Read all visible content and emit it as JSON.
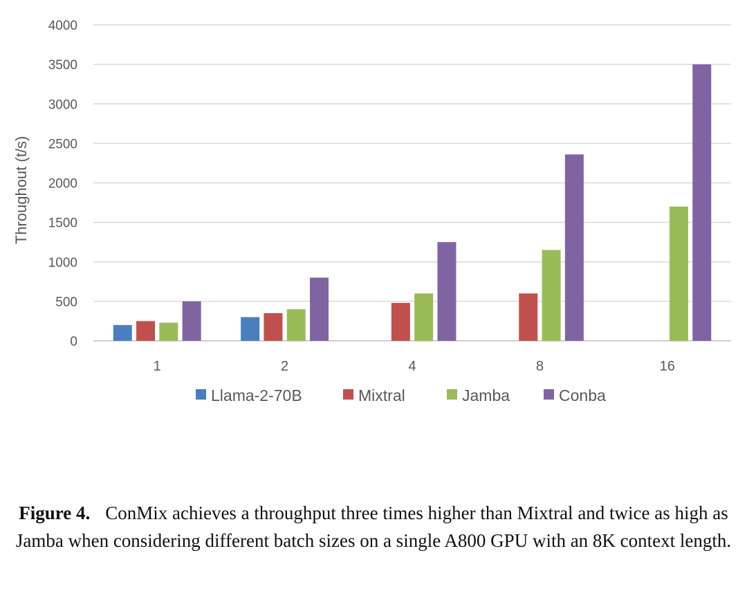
{
  "chart_data": {
    "type": "bar",
    "title": "",
    "xlabel": "",
    "ylabel": "Throughout (t/s)",
    "ylim": [
      0,
      4000
    ],
    "yticks": [
      "0",
      "500",
      "1000",
      "1500",
      "2000",
      "2500",
      "3000",
      "3500",
      "4000"
    ],
    "categories": [
      "1",
      "2",
      "4",
      "8",
      "16"
    ],
    "series": [
      {
        "name": "Llama-2-70B",
        "color": "#4a7ebf",
        "values": [
          200,
          300,
          null,
          null,
          null
        ]
      },
      {
        "name": "Mixtral",
        "color": "#c0504d",
        "values": [
          250,
          350,
          480,
          600,
          null
        ]
      },
      {
        "name": "Jamba",
        "color": "#9bbb59",
        "values": [
          230,
          400,
          600,
          1150,
          1700
        ]
      },
      {
        "name": "Conba",
        "color": "#8064a2",
        "values": [
          500,
          800,
          1250,
          2360,
          3500
        ]
      }
    ],
    "grid": true,
    "legend": "bottom"
  },
  "caption": {
    "label": "Figure 4.",
    "text": "ConMix achieves a throughput three times higher than Mixtral and twice as high as Jamba when considering different batch sizes on a single A800 GPU with an 8K context length."
  }
}
